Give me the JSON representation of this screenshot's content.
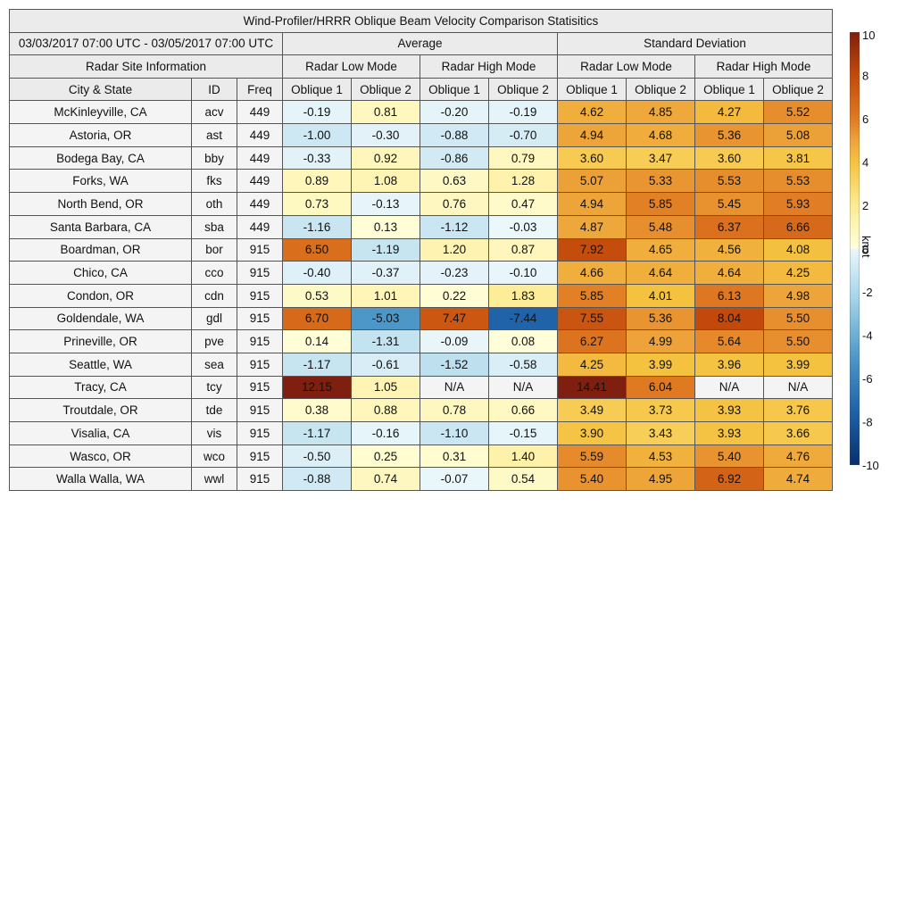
{
  "title": "Wind-Profiler/HRRR Oblique Beam Velocity Comparison Statisitics",
  "period": "03/03/2017 07:00 UTC - 03/05/2017 07:00 UTC",
  "groups": {
    "average": "Average",
    "std": "Standard Deviation"
  },
  "site_info_label": "Radar Site Information",
  "modes": {
    "low": "Radar Low Mode",
    "high": "Radar High Mode"
  },
  "columns": {
    "city": "City & State",
    "id": "ID",
    "freq": "Freq",
    "oblique1": "Oblique 1",
    "oblique2": "Oblique 2"
  },
  "colorbar": {
    "unit": "knot",
    "min": -10,
    "max": 10,
    "ticks": [
      10,
      8,
      6,
      4,
      2,
      0,
      -2,
      -4,
      -6,
      -8,
      -10
    ],
    "stops": [
      [
        -10,
        "#08306b"
      ],
      [
        -7.5,
        "#1f62a8"
      ],
      [
        -5,
        "#4e98c8"
      ],
      [
        -2.5,
        "#9fd0e6"
      ],
      [
        0,
        "#ebf7fb"
      ],
      [
        0.0001,
        "#ffffdb"
      ],
      [
        2,
        "#fdeb93"
      ],
      [
        4,
        "#f5c240"
      ],
      [
        5,
        "#eda33a"
      ],
      [
        6,
        "#e07a22"
      ],
      [
        8,
        "#c34a0b"
      ],
      [
        10,
        "#7f1f10"
      ]
    ]
  },
  "chart_data": {
    "type": "table",
    "title": "Wind-Profiler/HRRR Oblique Beam Velocity Comparison Statisitics",
    "columns": [
      "Average / Radar Low Mode / Oblique 1",
      "Average / Radar Low Mode / Oblique 2",
      "Average / Radar High Mode / Oblique 1",
      "Average / Radar High Mode / Oblique 2",
      "Standard Deviation / Radar Low Mode / Oblique 1",
      "Standard Deviation / Radar Low Mode / Oblique 2",
      "Standard Deviation / Radar High Mode / Oblique 1",
      "Standard Deviation / Radar High Mode / Oblique 2"
    ],
    "rows": [
      {
        "city": "McKinleyville, CA",
        "id": "acv",
        "freq": "449",
        "values": [
          "-0.19",
          "0.81",
          "-0.20",
          "-0.19",
          "4.62",
          "4.85",
          "4.27",
          "5.52"
        ]
      },
      {
        "city": "Astoria, OR",
        "id": "ast",
        "freq": "449",
        "values": [
          "-1.00",
          "-0.30",
          "-0.88",
          "-0.70",
          "4.94",
          "4.68",
          "5.36",
          "5.08"
        ]
      },
      {
        "city": "Bodega Bay, CA",
        "id": "bby",
        "freq": "449",
        "values": [
          "-0.33",
          "0.92",
          "-0.86",
          "0.79",
          "3.60",
          "3.47",
          "3.60",
          "3.81"
        ]
      },
      {
        "city": "Forks, WA",
        "id": "fks",
        "freq": "449",
        "values": [
          "0.89",
          "1.08",
          "0.63",
          "1.28",
          "5.07",
          "5.33",
          "5.53",
          "5.53"
        ]
      },
      {
        "city": "North Bend, OR",
        "id": "oth",
        "freq": "449",
        "values": [
          "0.73",
          "-0.13",
          "0.76",
          "0.47",
          "4.94",
          "5.85",
          "5.45",
          "5.93"
        ]
      },
      {
        "city": "Santa Barbara, CA",
        "id": "sba",
        "freq": "449",
        "values": [
          "-1.16",
          "0.13",
          "-1.12",
          "-0.03",
          "4.87",
          "5.48",
          "6.37",
          "6.66"
        ]
      },
      {
        "city": "Boardman, OR",
        "id": "bor",
        "freq": "915",
        "values": [
          "6.50",
          "-1.19",
          "1.20",
          "0.87",
          "7.92",
          "4.65",
          "4.56",
          "4.08"
        ]
      },
      {
        "city": "Chico, CA",
        "id": "cco",
        "freq": "915",
        "values": [
          "-0.40",
          "-0.37",
          "-0.23",
          "-0.10",
          "4.66",
          "4.64",
          "4.64",
          "4.25"
        ]
      },
      {
        "city": "Condon, OR",
        "id": "cdn",
        "freq": "915",
        "values": [
          "0.53",
          "1.01",
          "0.22",
          "1.83",
          "5.85",
          "4.01",
          "6.13",
          "4.98"
        ]
      },
      {
        "city": "Goldendale, WA",
        "id": "gdl",
        "freq": "915",
        "values": [
          "6.70",
          "-5.03",
          "7.47",
          "-7.44",
          "7.55",
          "5.36",
          "8.04",
          "5.50"
        ]
      },
      {
        "city": "Prineville, OR",
        "id": "pve",
        "freq": "915",
        "values": [
          "0.14",
          "-1.31",
          "-0.09",
          "0.08",
          "6.27",
          "4.99",
          "5.64",
          "5.50"
        ]
      },
      {
        "city": "Seattle, WA",
        "id": "sea",
        "freq": "915",
        "values": [
          "-1.17",
          "-0.61",
          "-1.52",
          "-0.58",
          "4.25",
          "3.99",
          "3.96",
          "3.99"
        ]
      },
      {
        "city": "Tracy, CA",
        "id": "tcy",
        "freq": "915",
        "values": [
          "12.15",
          "1.05",
          "N/A",
          "N/A",
          "14.41",
          "6.04",
          "N/A",
          "N/A"
        ]
      },
      {
        "city": "Troutdale, OR",
        "id": "tde",
        "freq": "915",
        "values": [
          "0.38",
          "0.88",
          "0.78",
          "0.66",
          "3.49",
          "3.73",
          "3.93",
          "3.76"
        ]
      },
      {
        "city": "Visalia, CA",
        "id": "vis",
        "freq": "915",
        "values": [
          "-1.17",
          "-0.16",
          "-1.10",
          "-0.15",
          "3.90",
          "3.43",
          "3.93",
          "3.66"
        ]
      },
      {
        "city": "Wasco, OR",
        "id": "wco",
        "freq": "915",
        "values": [
          "-0.50",
          "0.25",
          "0.31",
          "1.40",
          "5.59",
          "4.53",
          "5.40",
          "4.76"
        ]
      },
      {
        "city": "Walla Walla, WA",
        "id": "wwl",
        "freq": "915",
        "values": [
          "-0.88",
          "0.74",
          "-0.07",
          "0.54",
          "5.40",
          "4.95",
          "6.92",
          "4.74"
        ]
      }
    ]
  }
}
